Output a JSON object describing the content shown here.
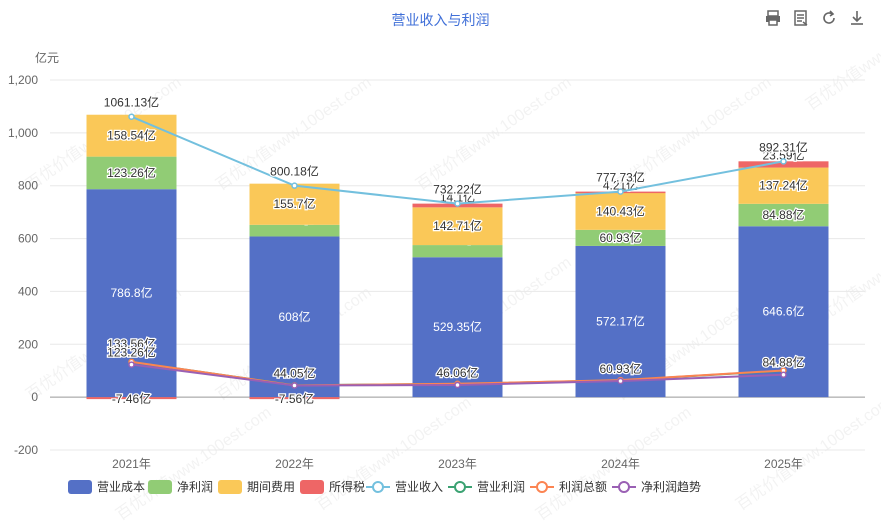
{
  "title": "营业收入与利润",
  "toolbar": {
    "icons": [
      "print-icon",
      "data-view-icon",
      "refresh-icon",
      "download-icon"
    ]
  },
  "watermark": "百优价值www.100est.com",
  "chart_data": {
    "type": "bar",
    "ylabel": "亿元",
    "ylim": [
      -200,
      1200
    ],
    "yticks": [
      "-200",
      "0",
      "200",
      "400",
      "600",
      "800",
      "1,000",
      "1,200"
    ],
    "yticks_values": [
      -200,
      0,
      200,
      400,
      600,
      800,
      1000,
      1200
    ],
    "categories": [
      "2021年",
      "2022年",
      "2023年",
      "2024年",
      "2025年"
    ],
    "stacked_series": [
      {
        "name": "营业成本",
        "color": "#5470c6",
        "values": [
          786.8,
          608,
          529.35,
          572.17,
          646.6
        ],
        "labels": [
          "786.8亿",
          "608亿",
          "529.35亿",
          "572.17亿",
          "646.6亿"
        ]
      },
      {
        "name": "净利润",
        "color": "#91cc75",
        "values": [
          123.26,
          44.05,
          46.06,
          60.93,
          84.88
        ],
        "labels": [
          "123.26亿",
          "44.05亿",
          "46.06亿",
          "60.93亿",
          "84.88亿"
        ]
      },
      {
        "name": "期间费用",
        "color": "#fac858",
        "values": [
          158.54,
          155.7,
          142.71,
          140.43,
          137.24
        ],
        "labels": [
          "158.54亿",
          "155.7亿",
          "142.71亿",
          "140.43亿",
          "137.24亿"
        ]
      },
      {
        "name": "所得税",
        "color": "#ee6666",
        "values": [
          -7.46,
          -7.56,
          14.1,
          4.21,
          23.59
        ],
        "labels": [
          "-7.46亿",
          "-7.56亿",
          "14.1亿",
          "4.21亿",
          "23.59亿"
        ]
      }
    ],
    "line_series": [
      {
        "name": "营业收入",
        "color": "#73c0de",
        "values": [
          1061.13,
          800.18,
          732.22,
          777.73,
          892.31
        ],
        "labels": [
          "1061.13亿",
          "800.18亿",
          "732.22亿",
          "777.73亿",
          "892.31亿"
        ]
      },
      {
        "name": "营业利润",
        "color": "#3ba272",
        "values": [
          133.56,
          45.0,
          50.2,
          64.0,
          100.0
        ],
        "labels": [
          "133.56亿",
          "",
          "",
          "",
          ""
        ]
      },
      {
        "name": "利润总额",
        "color": "#fc8452",
        "values": [
          133.56,
          44.5,
          50.5,
          64.5,
          101.0
        ],
        "labels": [
          "",
          "",
          "",
          "",
          ""
        ]
      },
      {
        "name": "净利润趋势",
        "color": "#9a60b4",
        "values": [
          123.26,
          44.05,
          46.06,
          60.93,
          84.88
        ],
        "labels": [
          "123.26亿",
          "44.05亿",
          "46.06亿",
          "60.93亿",
          "84.88亿"
        ]
      }
    ],
    "legend": [
      "营业成本",
      "净利润",
      "期间费用",
      "所得税",
      "营业收入",
      "营业利润",
      "利润总额",
      "净利润趋势"
    ],
    "legend_position": "bottom"
  }
}
